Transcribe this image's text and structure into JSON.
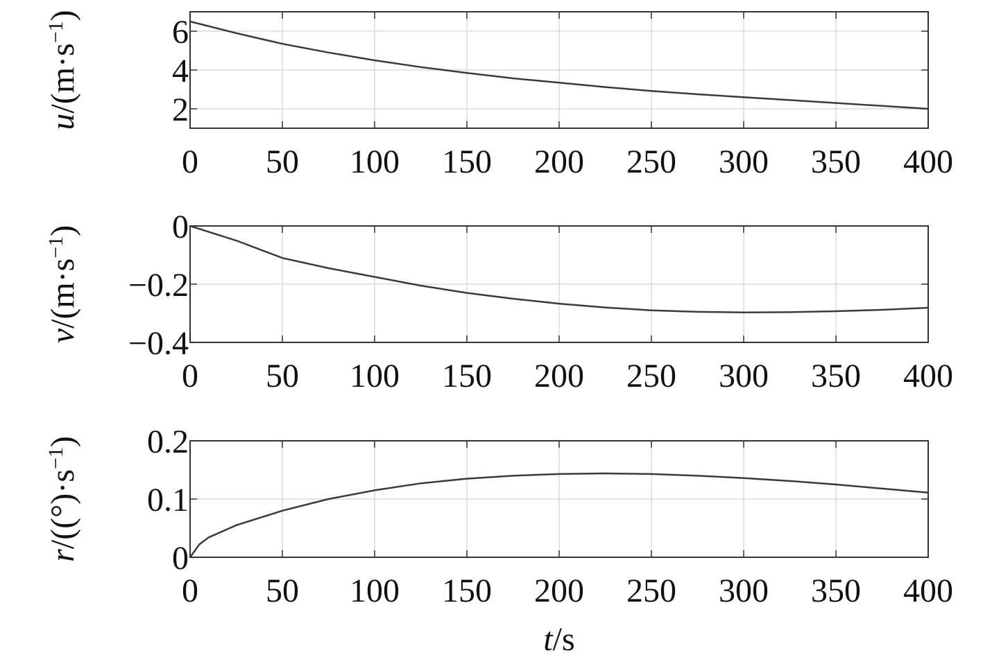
{
  "chart_data": [
    {
      "type": "line",
      "ylabel": [
        "u",
        "/(m·s",
        "−1",
        ")"
      ],
      "x": [
        0,
        25,
        50,
        75,
        100,
        125,
        150,
        175,
        200,
        225,
        250,
        275,
        300,
        325,
        350,
        375,
        400
      ],
      "values": [
        6.5,
        5.9,
        5.35,
        4.9,
        4.5,
        4.15,
        3.85,
        3.57,
        3.35,
        3.12,
        2.92,
        2.75,
        2.6,
        2.45,
        2.3,
        2.15,
        2.0
      ],
      "color": "#3a3a3a",
      "xlim": [
        0,
        400
      ],
      "xticks": [
        0,
        50,
        100,
        150,
        200,
        250,
        300,
        350,
        400
      ],
      "ylim": [
        1,
        7
      ],
      "yticks": [
        2,
        4,
        6
      ],
      "grid": true
    },
    {
      "type": "line",
      "ylabel": [
        "v",
        "/(m·s",
        "−1",
        ")"
      ],
      "x": [
        0,
        10,
        25,
        50,
        75,
        100,
        125,
        150,
        175,
        200,
        225,
        250,
        275,
        300,
        325,
        350,
        375,
        400
      ],
      "values": [
        0,
        -0.02,
        -0.05,
        -0.11,
        -0.145,
        -0.175,
        -0.205,
        -0.23,
        -0.25,
        -0.267,
        -0.28,
        -0.29,
        -0.295,
        -0.297,
        -0.296,
        -0.293,
        -0.288,
        -0.281
      ],
      "color": "#3a3a3a",
      "xlim": [
        0,
        400
      ],
      "xticks": [
        0,
        50,
        100,
        150,
        200,
        250,
        300,
        350,
        400
      ],
      "ylim": [
        -0.4,
        0
      ],
      "yticks": [
        {
          "value": -0.4,
          "label": "−0.4"
        },
        {
          "value": -0.2,
          "label": "−0.2"
        },
        0
      ],
      "grid": true
    },
    {
      "type": "line",
      "ylabel": [
        "r",
        "/((°)·s",
        "−1",
        ")"
      ],
      "xlabel": [
        "t",
        "/s"
      ],
      "x": [
        0,
        5,
        10,
        25,
        50,
        75,
        100,
        125,
        150,
        175,
        200,
        225,
        250,
        275,
        300,
        325,
        350,
        375,
        400
      ],
      "values": [
        0,
        0.022,
        0.034,
        0.055,
        0.08,
        0.1,
        0.115,
        0.127,
        0.135,
        0.14,
        0.143,
        0.144,
        0.143,
        0.14,
        0.136,
        0.131,
        0.125,
        0.118,
        0.111
      ],
      "color": "#3a3a3a",
      "xlim": [
        0,
        400
      ],
      "xticks": [
        0,
        50,
        100,
        150,
        200,
        250,
        300,
        350,
        400
      ],
      "ylim": [
        0,
        0.2
      ],
      "yticks": [
        0,
        0.1,
        0.2
      ],
      "grid": true
    }
  ]
}
